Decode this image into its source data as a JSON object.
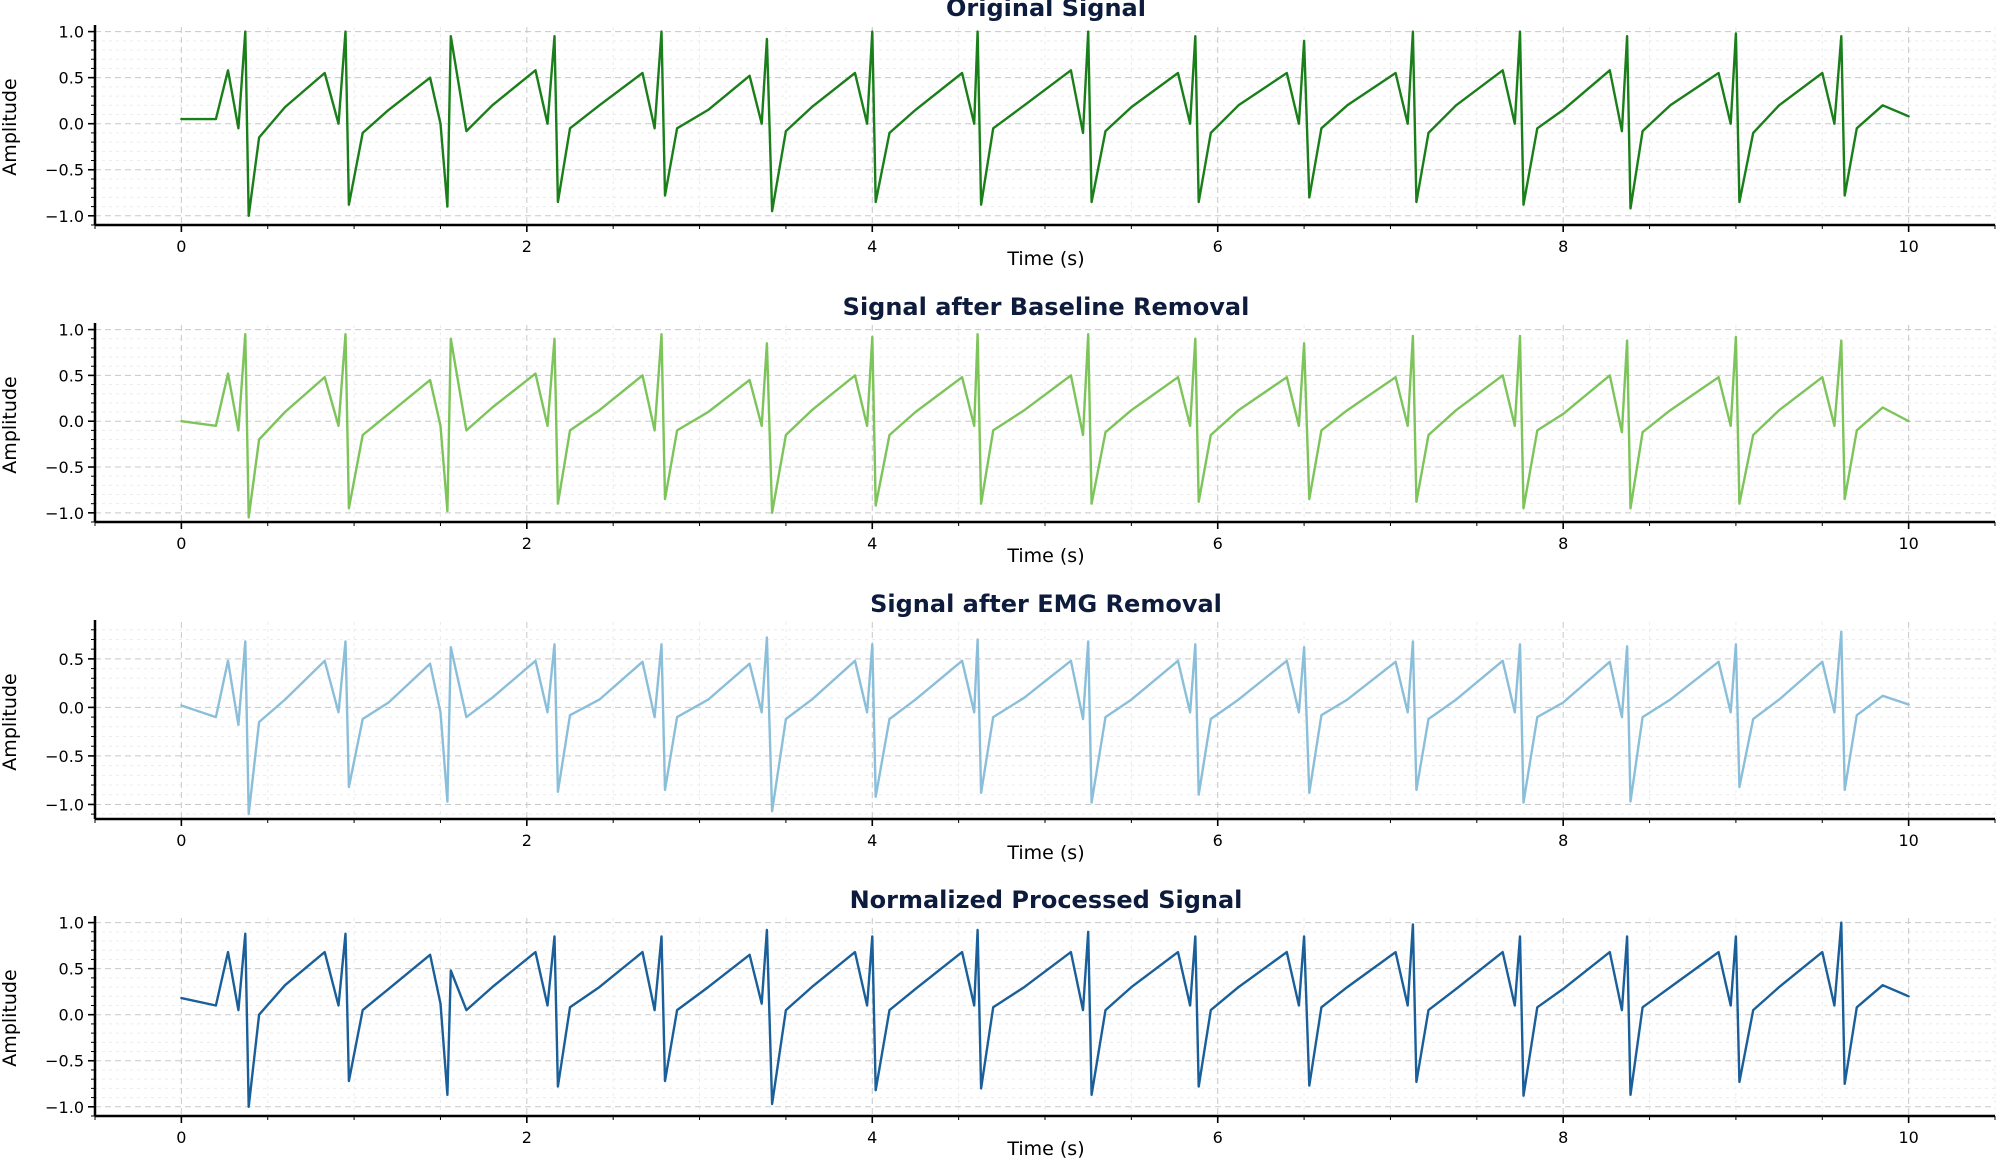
{
  "chart_data": [
    {
      "type": "line",
      "title": "Original Signal",
      "xlabel": "Time (s)",
      "ylabel": "Amplitude",
      "xlim": [
        -0.5,
        10.5
      ],
      "ylim": [
        -1.1,
        1.05
      ],
      "xticks": [
        0,
        2,
        4,
        6,
        8,
        10
      ],
      "xtick_labels": [
        "0",
        "2",
        "4",
        "6",
        "8",
        "10"
      ],
      "yticks": [
        1.0,
        0.5,
        0.0,
        -0.5,
        -1.0
      ],
      "ytick_labels": [
        "1.0",
        "0.5",
        "0.0",
        "−0.5",
        "−1.0"
      ],
      "grid": true,
      "color": "#1a7f1a",
      "series": [
        {
          "x": [
            0.0,
            0.2,
            0.27,
            0.33,
            0.37,
            0.39,
            0.45,
            0.6,
            0.83,
            0.91,
            0.95,
            0.97,
            1.05,
            1.2,
            1.44,
            1.5,
            1.54,
            1.56,
            1.65,
            1.8,
            2.05,
            2.12,
            2.16,
            2.18,
            2.25,
            2.42,
            2.67,
            2.74,
            2.78,
            2.8,
            2.87,
            3.05,
            3.29,
            3.36,
            3.39,
            3.42,
            3.5,
            3.65,
            3.9,
            3.97,
            4.0,
            4.02,
            4.1,
            4.25,
            4.52,
            4.59,
            4.61,
            4.63,
            4.7,
            4.88,
            5.15,
            5.22,
            5.25,
            5.27,
            5.35,
            5.5,
            5.77,
            5.84,
            5.87,
            5.89,
            5.96,
            6.12,
            6.4,
            6.47,
            6.5,
            6.53,
            6.6,
            6.75,
            7.03,
            7.1,
            7.13,
            7.15,
            7.22,
            7.38,
            7.65,
            7.72,
            7.75,
            7.77,
            7.85,
            8.0,
            8.27,
            8.34,
            8.37,
            8.39,
            8.46,
            8.62,
            8.9,
            8.97,
            9.0,
            9.02,
            9.1,
            9.25,
            9.5,
            9.57,
            9.61,
            9.63,
            9.7,
            9.85,
            10.0
          ],
          "y": [
            0.05,
            0.05,
            0.58,
            -0.05,
            1.0,
            -1.0,
            -0.15,
            0.18,
            0.55,
            0.0,
            1.0,
            -0.88,
            -0.1,
            0.15,
            0.5,
            0.0,
            -0.9,
            0.95,
            -0.08,
            0.2,
            0.58,
            0.0,
            0.95,
            -0.85,
            -0.05,
            0.2,
            0.55,
            -0.05,
            1.0,
            -0.78,
            -0.05,
            0.15,
            0.52,
            0.0,
            0.92,
            -0.95,
            -0.08,
            0.18,
            0.55,
            0.0,
            1.0,
            -0.85,
            -0.1,
            0.15,
            0.55,
            0.0,
            1.0,
            -0.88,
            -0.05,
            0.2,
            0.58,
            -0.1,
            1.0,
            -0.85,
            -0.08,
            0.18,
            0.55,
            0.0,
            0.95,
            -0.85,
            -0.1,
            0.2,
            0.55,
            0.0,
            0.9,
            -0.8,
            -0.05,
            0.2,
            0.55,
            0.0,
            1.0,
            -0.85,
            -0.1,
            0.2,
            0.58,
            0.0,
            1.0,
            -0.88,
            -0.05,
            0.15,
            0.58,
            -0.08,
            0.95,
            -0.92,
            -0.08,
            0.2,
            0.55,
            0.0,
            0.98,
            -0.85,
            -0.1,
            0.2,
            0.55,
            0.0,
            0.95,
            -0.78,
            -0.05,
            0.2,
            0.08
          ]
        }
      ]
    },
    {
      "type": "line",
      "title": "Signal after Baseline Removal",
      "xlabel": "Time (s)",
      "ylabel": "Amplitude",
      "xlim": [
        -0.5,
        10.5
      ],
      "ylim": [
        -1.1,
        1.05
      ],
      "xticks": [
        0,
        2,
        4,
        6,
        8,
        10
      ],
      "xtick_labels": [
        "0",
        "2",
        "4",
        "6",
        "8",
        "10"
      ],
      "yticks": [
        1.0,
        0.5,
        0.0,
        -0.5,
        -1.0
      ],
      "ytick_labels": [
        "1.0",
        "0.5",
        "0.0",
        "−0.5",
        "−1.0"
      ],
      "grid": true,
      "color": "#7dc45a",
      "series": [
        {
          "x": [
            0.0,
            0.2,
            0.27,
            0.33,
            0.37,
            0.39,
            0.45,
            0.6,
            0.83,
            0.91,
            0.95,
            0.97,
            1.05,
            1.2,
            1.44,
            1.5,
            1.54,
            1.56,
            1.65,
            1.8,
            2.05,
            2.12,
            2.16,
            2.18,
            2.25,
            2.42,
            2.67,
            2.74,
            2.78,
            2.8,
            2.87,
            3.05,
            3.29,
            3.36,
            3.39,
            3.42,
            3.5,
            3.65,
            3.9,
            3.97,
            4.0,
            4.02,
            4.1,
            4.25,
            4.52,
            4.59,
            4.61,
            4.63,
            4.7,
            4.88,
            5.15,
            5.22,
            5.25,
            5.27,
            5.35,
            5.5,
            5.77,
            5.84,
            5.87,
            5.89,
            5.96,
            6.12,
            6.4,
            6.47,
            6.5,
            6.53,
            6.6,
            6.75,
            7.03,
            7.1,
            7.13,
            7.15,
            7.22,
            7.38,
            7.65,
            7.72,
            7.75,
            7.77,
            7.85,
            8.0,
            8.27,
            8.34,
            8.37,
            8.39,
            8.46,
            8.62,
            8.9,
            8.97,
            9.0,
            9.02,
            9.1,
            9.25,
            9.5,
            9.57,
            9.61,
            9.63,
            9.7,
            9.85,
            10.0
          ],
          "y": [
            0.0,
            -0.05,
            0.52,
            -0.1,
            0.95,
            -1.05,
            -0.2,
            0.1,
            0.48,
            -0.05,
            0.95,
            -0.95,
            -0.15,
            0.08,
            0.45,
            -0.05,
            -0.98,
            0.9,
            -0.1,
            0.15,
            0.52,
            -0.05,
            0.9,
            -0.9,
            -0.1,
            0.12,
            0.5,
            -0.1,
            0.95,
            -0.85,
            -0.1,
            0.1,
            0.45,
            -0.05,
            0.85,
            -1.0,
            -0.15,
            0.12,
            0.5,
            -0.05,
            0.92,
            -0.92,
            -0.15,
            0.1,
            0.48,
            -0.05,
            0.95,
            -0.9,
            -0.1,
            0.12,
            0.5,
            -0.15,
            0.95,
            -0.9,
            -0.12,
            0.12,
            0.48,
            -0.05,
            0.9,
            -0.88,
            -0.15,
            0.12,
            0.48,
            -0.05,
            0.85,
            -0.85,
            -0.1,
            0.12,
            0.48,
            -0.05,
            0.93,
            -0.88,
            -0.15,
            0.12,
            0.5,
            -0.05,
            0.93,
            -0.95,
            -0.1,
            0.08,
            0.5,
            -0.12,
            0.88,
            -0.95,
            -0.12,
            0.12,
            0.48,
            -0.05,
            0.92,
            -0.9,
            -0.15,
            0.12,
            0.48,
            -0.05,
            0.88,
            -0.85,
            -0.1,
            0.15,
            0.0
          ]
        }
      ]
    },
    {
      "type": "line",
      "title": "Signal after EMG Removal",
      "xlabel": "Time (s)",
      "ylabel": "Amplitude",
      "xlim": [
        -0.5,
        10.5
      ],
      "ylim": [
        -1.15,
        0.88
      ],
      "xticks": [
        0,
        2,
        4,
        6,
        8,
        10
      ],
      "xtick_labels": [
        "0",
        "2",
        "4",
        "6",
        "8",
        "10"
      ],
      "yticks": [
        0.5,
        0.0,
        -0.5,
        -1.0
      ],
      "ytick_labels": [
        "0.5",
        "0.0",
        "−0.5",
        "−1.0"
      ],
      "grid": true,
      "color": "#8bbfd9",
      "series": [
        {
          "x": [
            0.0,
            0.2,
            0.27,
            0.33,
            0.37,
            0.39,
            0.45,
            0.6,
            0.83,
            0.91,
            0.95,
            0.97,
            1.05,
            1.2,
            1.44,
            1.5,
            1.54,
            1.56,
            1.65,
            1.8,
            2.05,
            2.12,
            2.16,
            2.18,
            2.25,
            2.42,
            2.67,
            2.74,
            2.78,
            2.8,
            2.87,
            3.05,
            3.29,
            3.36,
            3.39,
            3.42,
            3.5,
            3.65,
            3.9,
            3.97,
            4.0,
            4.02,
            4.1,
            4.25,
            4.52,
            4.59,
            4.61,
            4.63,
            4.7,
            4.88,
            5.15,
            5.22,
            5.25,
            5.27,
            5.35,
            5.5,
            5.77,
            5.84,
            5.87,
            5.89,
            5.96,
            6.12,
            6.4,
            6.47,
            6.5,
            6.53,
            6.6,
            6.75,
            7.03,
            7.1,
            7.13,
            7.15,
            7.22,
            7.38,
            7.65,
            7.72,
            7.75,
            7.77,
            7.85,
            8.0,
            8.27,
            8.34,
            8.37,
            8.39,
            8.46,
            8.62,
            8.9,
            8.97,
            9.0,
            9.02,
            9.1,
            9.25,
            9.5,
            9.57,
            9.61,
            9.63,
            9.7,
            9.85,
            10.0
          ],
          "y": [
            0.02,
            -0.1,
            0.48,
            -0.18,
            0.68,
            -1.1,
            -0.15,
            0.08,
            0.48,
            -0.05,
            0.68,
            -0.82,
            -0.12,
            0.05,
            0.45,
            -0.05,
            -0.97,
            0.62,
            -0.1,
            0.1,
            0.48,
            -0.05,
            0.65,
            -0.87,
            -0.08,
            0.08,
            0.47,
            -0.1,
            0.65,
            -0.85,
            -0.1,
            0.08,
            0.45,
            -0.05,
            0.72,
            -1.07,
            -0.12,
            0.08,
            0.48,
            -0.05,
            0.65,
            -0.92,
            -0.12,
            0.08,
            0.48,
            -0.05,
            0.7,
            -0.88,
            -0.1,
            0.1,
            0.48,
            -0.12,
            0.68,
            -0.98,
            -0.1,
            0.08,
            0.48,
            -0.05,
            0.65,
            -0.9,
            -0.12,
            0.08,
            0.48,
            -0.05,
            0.62,
            -0.88,
            -0.08,
            0.08,
            0.47,
            -0.05,
            0.68,
            -0.85,
            -0.12,
            0.08,
            0.48,
            -0.05,
            0.65,
            -0.98,
            -0.1,
            0.05,
            0.47,
            -0.1,
            0.63,
            -0.97,
            -0.1,
            0.08,
            0.47,
            -0.05,
            0.65,
            -0.82,
            -0.12,
            0.08,
            0.47,
            -0.05,
            0.78,
            -0.85,
            -0.08,
            0.12,
            0.03
          ]
        }
      ]
    },
    {
      "type": "line",
      "title": "Normalized Processed Signal",
      "xlabel": "Time (s)",
      "ylabel": "Amplitude",
      "xlim": [
        -0.5,
        10.5
      ],
      "ylim": [
        -1.1,
        1.05
      ],
      "xticks": [
        0,
        2,
        4,
        6,
        8,
        10
      ],
      "xtick_labels": [
        "0",
        "2",
        "4",
        "6",
        "8",
        "10"
      ],
      "yticks": [
        1.0,
        0.5,
        0.0,
        -0.5,
        -1.0
      ],
      "ytick_labels": [
        "1.0",
        "0.5",
        "0.0",
        "−0.5",
        "−1.0"
      ],
      "grid": true,
      "color": "#1a5f99",
      "series": [
        {
          "x": [
            0.0,
            0.2,
            0.27,
            0.33,
            0.37,
            0.39,
            0.45,
            0.6,
            0.83,
            0.91,
            0.95,
            0.97,
            1.05,
            1.2,
            1.44,
            1.5,
            1.54,
            1.56,
            1.65,
            1.8,
            2.05,
            2.12,
            2.16,
            2.18,
            2.25,
            2.42,
            2.67,
            2.74,
            2.78,
            2.8,
            2.87,
            3.05,
            3.29,
            3.36,
            3.39,
            3.42,
            3.5,
            3.65,
            3.9,
            3.97,
            4.0,
            4.02,
            4.1,
            4.25,
            4.52,
            4.59,
            4.61,
            4.63,
            4.7,
            4.88,
            5.15,
            5.22,
            5.25,
            5.27,
            5.35,
            5.5,
            5.77,
            5.84,
            5.87,
            5.89,
            5.96,
            6.12,
            6.4,
            6.47,
            6.5,
            6.53,
            6.6,
            6.75,
            7.03,
            7.1,
            7.13,
            7.15,
            7.22,
            7.38,
            7.65,
            7.72,
            7.75,
            7.77,
            7.85,
            8.0,
            8.27,
            8.34,
            8.37,
            8.39,
            8.46,
            8.62,
            8.9,
            8.97,
            9.0,
            9.02,
            9.1,
            9.25,
            9.5,
            9.57,
            9.61,
            9.63,
            9.7,
            9.85,
            10.0
          ],
          "y": [
            0.18,
            0.1,
            0.68,
            0.05,
            0.88,
            -1.0,
            0.0,
            0.32,
            0.68,
            0.1,
            0.88,
            -0.72,
            0.05,
            0.28,
            0.65,
            0.12,
            -0.87,
            0.48,
            0.05,
            0.3,
            0.68,
            0.1,
            0.85,
            -0.78,
            0.08,
            0.3,
            0.68,
            0.05,
            0.85,
            -0.72,
            0.05,
            0.3,
            0.65,
            0.12,
            0.92,
            -0.97,
            0.05,
            0.3,
            0.68,
            0.1,
            0.85,
            -0.82,
            0.05,
            0.28,
            0.68,
            0.1,
            0.92,
            -0.8,
            0.08,
            0.3,
            0.68,
            0.05,
            0.9,
            -0.87,
            0.05,
            0.3,
            0.68,
            0.1,
            0.85,
            -0.78,
            0.05,
            0.3,
            0.68,
            0.1,
            0.85,
            -0.77,
            0.08,
            0.3,
            0.68,
            0.1,
            0.98,
            -0.73,
            0.05,
            0.28,
            0.68,
            0.1,
            0.85,
            -0.88,
            0.08,
            0.28,
            0.68,
            0.05,
            0.85,
            -0.87,
            0.08,
            0.3,
            0.68,
            0.1,
            0.85,
            -0.73,
            0.05,
            0.3,
            0.68,
            0.1,
            1.0,
            -0.75,
            0.08,
            0.32,
            0.2
          ]
        }
      ]
    }
  ]
}
